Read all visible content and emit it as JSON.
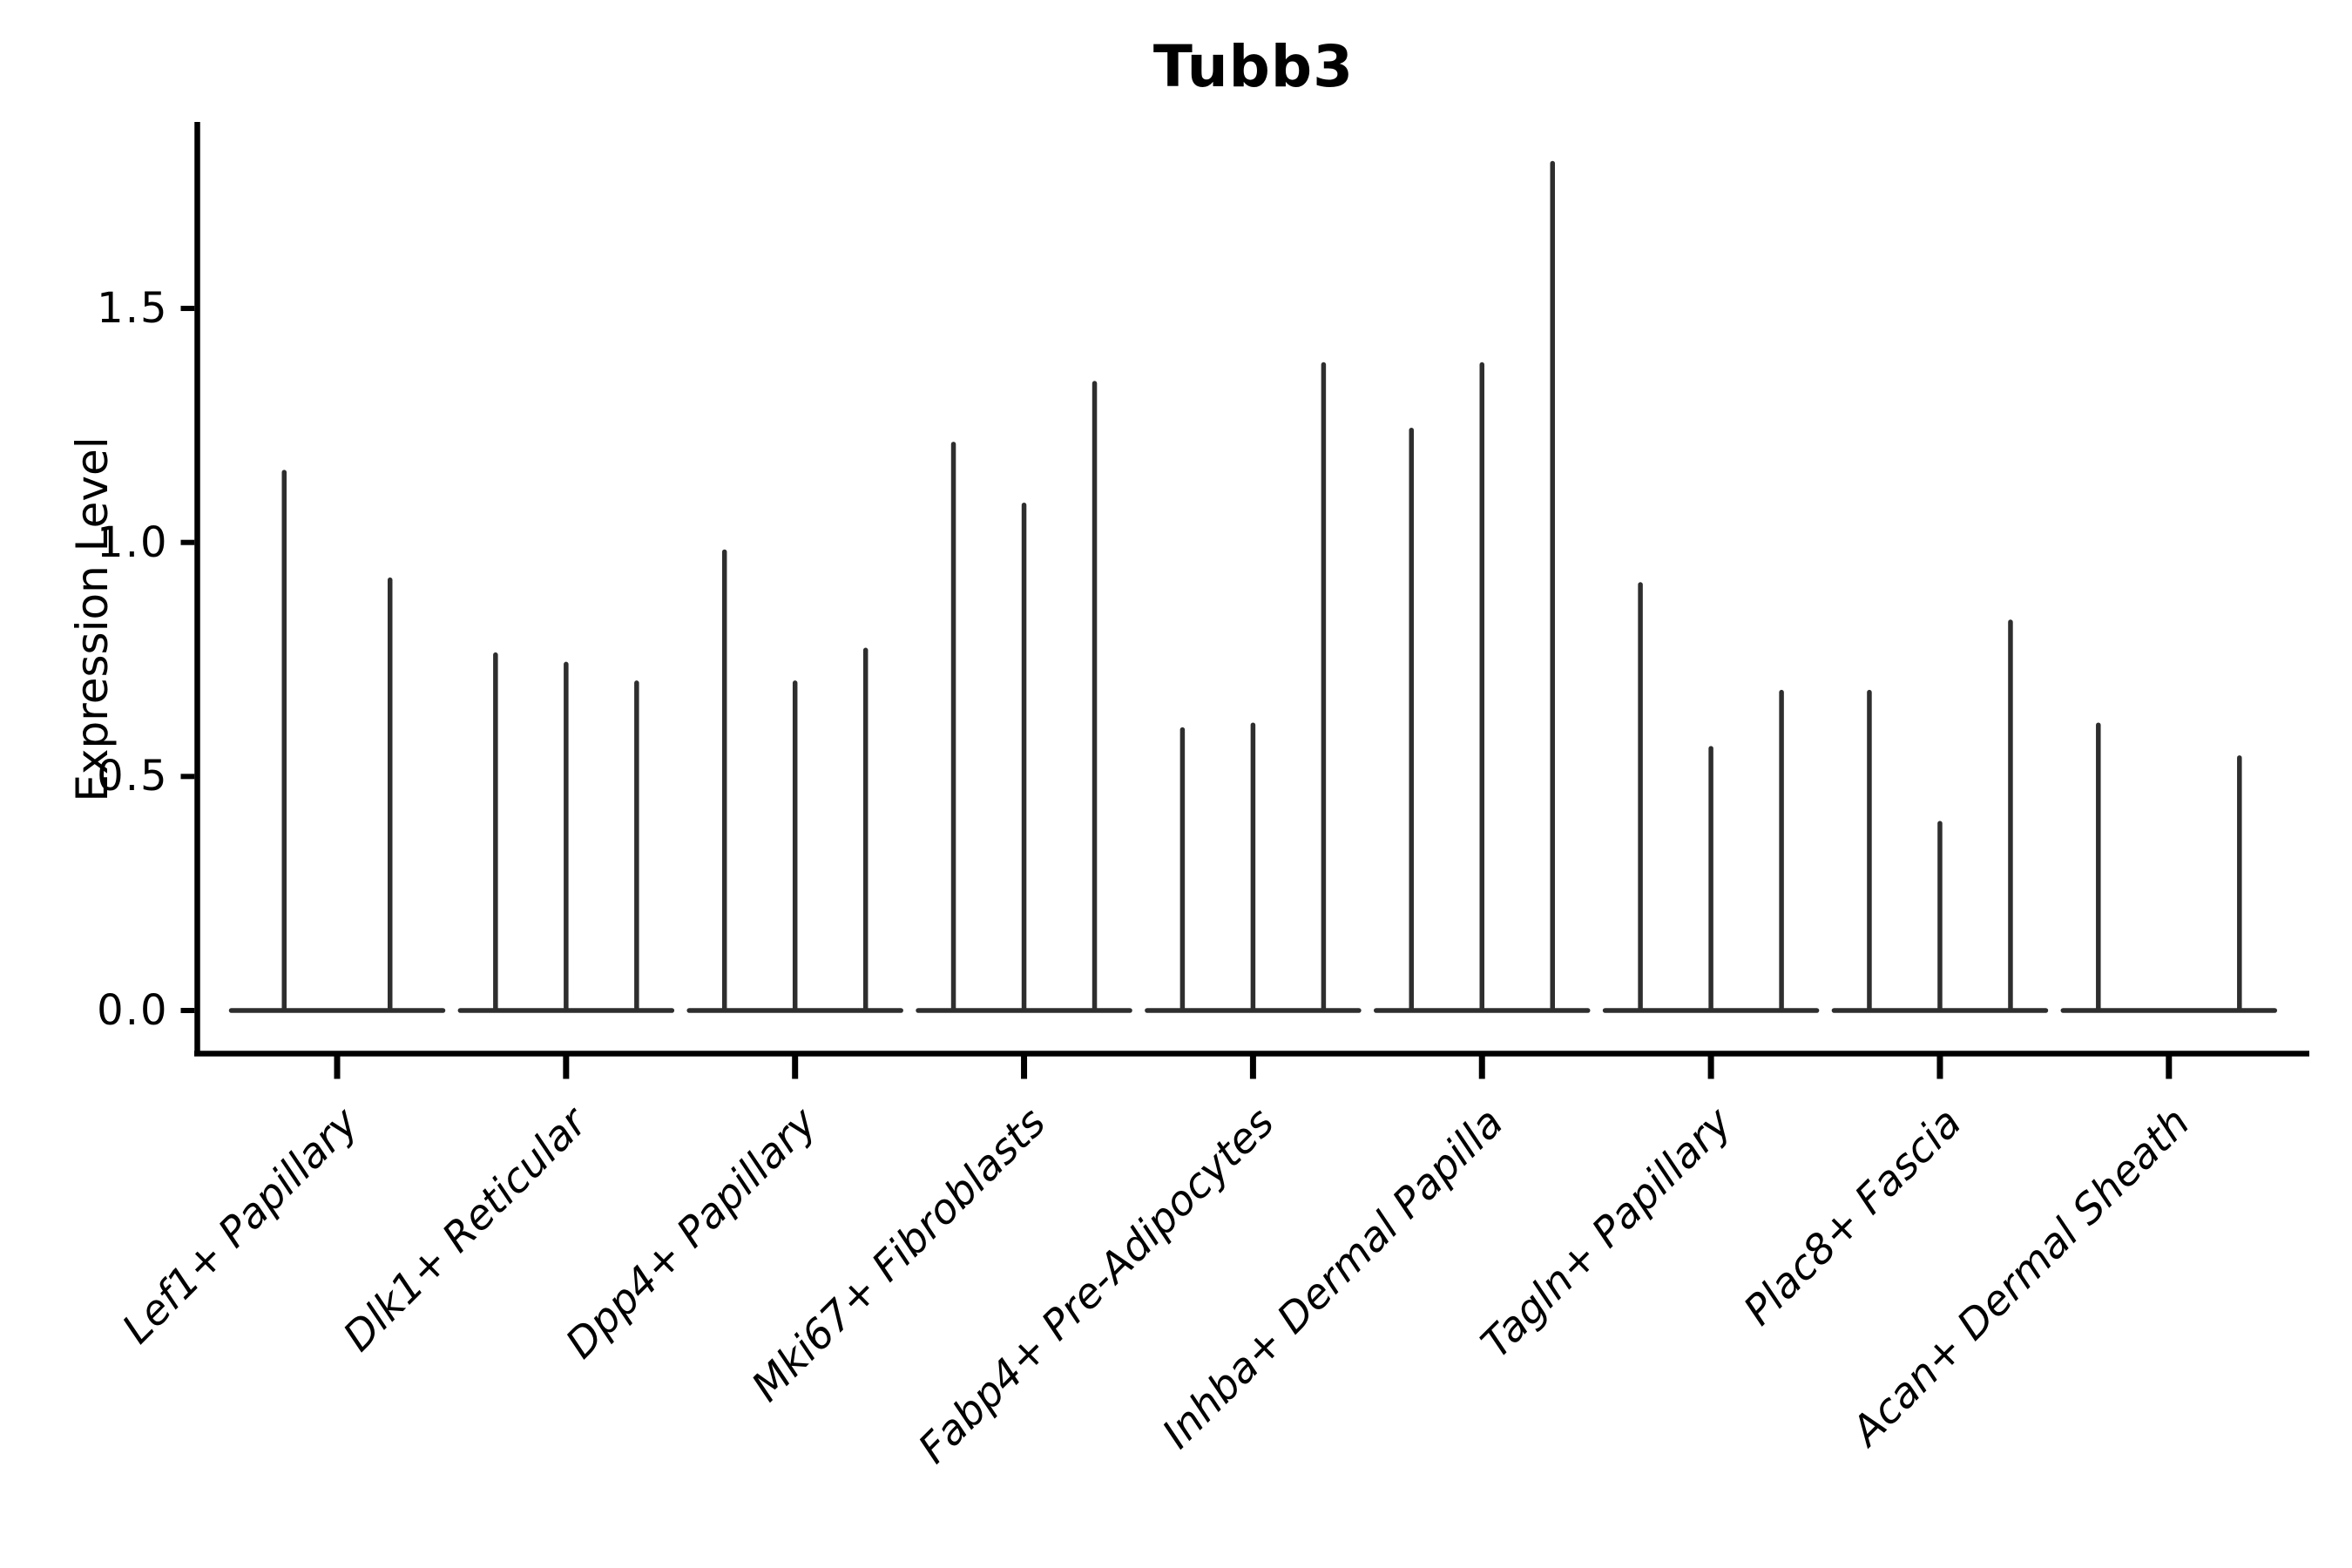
{
  "figure": {
    "background": "#ffffff"
  },
  "chart_data": {
    "type": "violin",
    "title": "Tubb3",
    "xlabel": "",
    "ylabel": "Expression Level",
    "ylim": [
      -0.09,
      1.9
    ],
    "y_ticks": [
      0.0,
      0.5,
      1.0,
      1.5
    ],
    "y_tick_labels": [
      "0.0",
      "0.5",
      "1.0",
      "1.5"
    ],
    "grid": false,
    "legend": "none",
    "description": "Very thin grouped violin plot of Tubb3 expression; each category shows 2-3 needle-like violins (flat base at 0 with a thin spike up to the max expression value)",
    "categories": [
      "Lef1+ Papillary",
      "Dlk1+ Reticular",
      "Dpp4+ Papillary",
      "Mki67+ Fibroblasts",
      "Fabp4+ Pre-Adipocytes",
      "Inhba+ Dermal Papilla",
      "Tagln+ Papillary",
      "Plac8+ Fascia",
      "Acan+ Dermal Sheath"
    ],
    "groups": [
      {
        "category": "Lef1+ Papillary",
        "violin_maxima": [
          1.15,
          0.92
        ]
      },
      {
        "category": "Dlk1+ Reticular",
        "violin_maxima": [
          0.76,
          0.74,
          0.7
        ]
      },
      {
        "category": "Dpp4+ Papillary",
        "violin_maxima": [
          0.98,
          0.7,
          0.77
        ]
      },
      {
        "category": "Mki67+ Fibroblasts",
        "violin_maxima": [
          1.21,
          1.08,
          1.34
        ]
      },
      {
        "category": "Fabp4+ Pre-Adipocytes",
        "violin_maxima": [
          0.6,
          0.61,
          1.38
        ]
      },
      {
        "category": "Inhba+ Dermal Papilla",
        "violin_maxima": [
          1.24,
          1.38,
          1.81
        ]
      },
      {
        "category": "Tagln+ Papillary",
        "violin_maxima": [
          0.91,
          0.56,
          0.68
        ]
      },
      {
        "category": "Plac8+ Fascia",
        "violin_maxima": [
          0.68,
          0.4,
          0.83
        ]
      },
      {
        "category": "Acan+ Dermal Sheath",
        "violin_maxima": [
          0.61,
          0.0,
          0.54
        ]
      }
    ],
    "colors": {
      "violin": "#2e2e2e",
      "axis": "#000000",
      "text": "#000000",
      "background": "#ffffff"
    }
  }
}
